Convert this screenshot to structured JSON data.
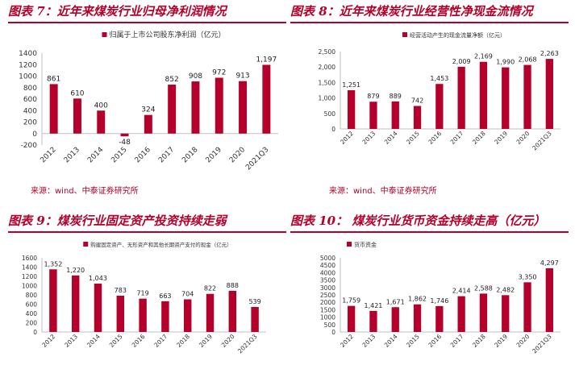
{
  "accent": "#b5002b",
  "panels": [
    {
      "title": "图表 7：近年来煤炭行业归母净利润情况",
      "source": "来源：wind、中泰证券研究所"
    },
    {
      "title": "图表 8：近年来煤炭行业经营性净现金流情况",
      "source": "来源：wind、中泰证券研究所"
    },
    {
      "title": "图表 9：煤炭行业固定资产投资持续走弱",
      "source": ""
    },
    {
      "title": "图表 10：  煤炭行业货币资金持续走高（亿元）",
      "source": ""
    }
  ],
  "chart_data": [
    {
      "type": "bar",
      "legend": "归属于上市公司股东净利润（亿元）",
      "legend_position": "top-center",
      "categories": [
        "2012",
        "2013",
        "2014",
        "2015",
        "2016",
        "2017",
        "2018",
        "2019",
        "2020",
        "2021Q3"
      ],
      "values": [
        861,
        610,
        400,
        -48,
        324,
        852,
        908,
        972,
        913,
        1197
      ],
      "labels": [
        "861",
        "610",
        "400",
        "-48",
        "324",
        "852",
        "908",
        "972",
        "913",
        "1,197"
      ],
      "yticks": [
        "-200",
        "0",
        "200",
        "400",
        "600",
        "800",
        "1000",
        "1200",
        "1400"
      ],
      "ylim": [
        -200,
        1400
      ],
      "grid": false,
      "color": "#b5002b"
    },
    {
      "type": "bar",
      "legend": "经营活动产生的现金流量净额（亿元）",
      "legend_position": "top-center",
      "categories": [
        "2012",
        "2013",
        "2014",
        "2015",
        "2016",
        "2017",
        "2018",
        "2019",
        "2020",
        "2021Q3"
      ],
      "values": [
        1251,
        879,
        889,
        742,
        1453,
        2009,
        2169,
        1990,
        2068,
        2263
      ],
      "labels": [
        "1,251",
        "879",
        "889",
        "742",
        "1,453",
        "2,009",
        "2,169",
        "1,990",
        "2,068",
        "2,263"
      ],
      "yticks": [
        "0",
        "500",
        "1,000",
        "1,500",
        "2,000",
        "2,500"
      ],
      "ylim": [
        0,
        2500
      ],
      "grid": false,
      "color": "#b5002b"
    },
    {
      "type": "bar",
      "legend": "购建固定资产、无形资产和其他长期资产支付的现金（亿元）",
      "legend_position": "top-center",
      "categories": [
        "2012",
        "2013",
        "2014",
        "2015",
        "2016",
        "2017",
        "2018",
        "2019",
        "2020",
        "2021Q3"
      ],
      "values": [
        1352,
        1220,
        1043,
        783,
        719,
        663,
        704,
        822,
        888,
        539
      ],
      "labels": [
        "1,352",
        "1,220",
        "1,043",
        "783",
        "719",
        "663",
        "704",
        "822",
        "888",
        "539"
      ],
      "yticks": [
        "0",
        "200",
        "400",
        "600",
        "800",
        "1000",
        "1200",
        "1400",
        "1600"
      ],
      "ylim": [
        0,
        1600
      ],
      "grid": false,
      "color": "#b5002b"
    },
    {
      "type": "bar",
      "legend": "货币资金",
      "legend_position": "top-left",
      "categories": [
        "2012",
        "2013",
        "2014",
        "2015",
        "2016",
        "2017",
        "2018",
        "2019",
        "2020",
        "2021Q3"
      ],
      "values": [
        1759,
        1421,
        1671,
        1862,
        1746,
        2414,
        2588,
        2482,
        3350,
        4297
      ],
      "labels": [
        "1,759",
        "1,421",
        "1,671",
        "1,862",
        "1,746",
        "2,414",
        "2,588",
        "2,482",
        "3,350",
        "4,297"
      ],
      "yticks": [
        "0",
        "500",
        "1000",
        "1500",
        "2000",
        "2500",
        "3000",
        "3500",
        "4000",
        "4500",
        "5000"
      ],
      "ylim": [
        0,
        5000
      ],
      "grid": false,
      "color": "#b5002b"
    }
  ]
}
